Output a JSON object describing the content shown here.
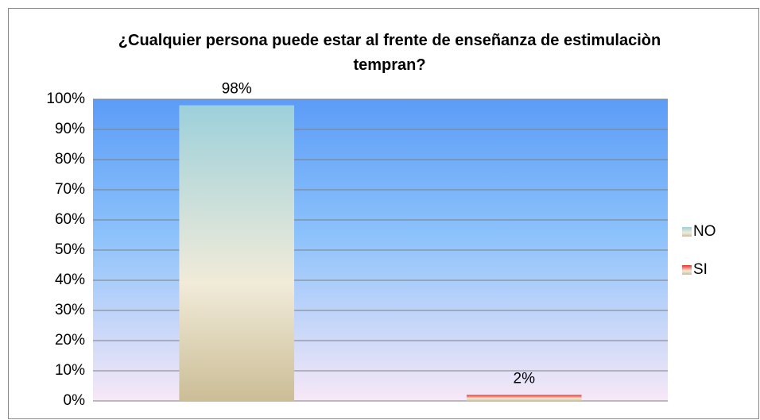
{
  "chart_data": {
    "type": "bar",
    "title": "¿Cualquier persona puede estar al frente de enseñanza de estimulaciòn tempran?",
    "categories": [
      null
    ],
    "series": [
      {
        "name": "NO",
        "color": "#9dd0db",
        "values": [
          98
        ],
        "value_labels": [
          "98%"
        ]
      },
      {
        "name": "SI",
        "color": "#e8322c",
        "values": [
          2
        ],
        "value_labels": [
          "2%"
        ]
      }
    ],
    "ylim": [
      0,
      100
    ],
    "yticks": [
      {
        "value": 0,
        "label": "0%"
      },
      {
        "value": 10,
        "label": "10%"
      },
      {
        "value": 20,
        "label": "20%"
      },
      {
        "value": 30,
        "label": "30%"
      },
      {
        "value": 40,
        "label": "40%"
      },
      {
        "value": 50,
        "label": "50%"
      },
      {
        "value": 60,
        "label": "60%"
      },
      {
        "value": 70,
        "label": "70%"
      },
      {
        "value": 80,
        "label": "80%"
      },
      {
        "value": 90,
        "label": "90%"
      },
      {
        "value": 100,
        "label": "100%"
      }
    ],
    "grid": true,
    "legend": "right"
  }
}
